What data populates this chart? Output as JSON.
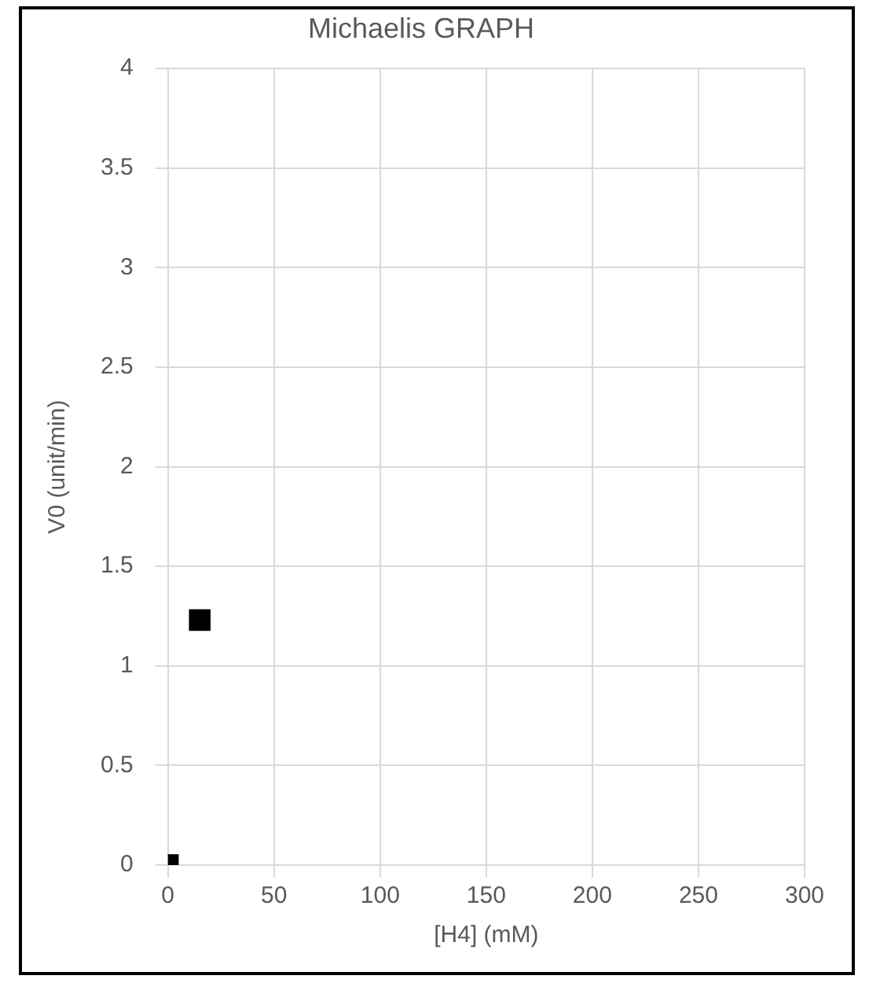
{
  "chart_data": {
    "type": "scatter",
    "title": "Michaelis GRAPH",
    "xlabel": "[H4] (mM)",
    "ylabel": "V0 (unit/min)",
    "x": [
      0,
      15
    ],
    "values": [
      0,
      1.23
    ],
    "color": "#000000",
    "marker": "square",
    "xlim": [
      0,
      300
    ],
    "xticks": [
      0,
      50,
      100,
      150,
      200,
      250,
      300
    ],
    "ylim": [
      0,
      4
    ],
    "yticks": [
      0,
      0.5,
      1,
      1.5,
      2,
      2.5,
      3,
      3.5,
      4
    ],
    "grid": true,
    "legend": false
  }
}
